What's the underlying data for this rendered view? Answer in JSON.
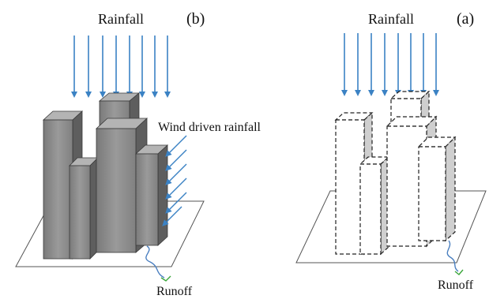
{
  "panel_b": {
    "letter": "(b)",
    "rainfall_label": "Rainfall",
    "wind_label": "Wind driven rainfall",
    "runoff_label": "Runoff"
  },
  "panel_a": {
    "letter": "(a)",
    "rainfall_label": "Rainfall",
    "runoff_label": "Runoff"
  },
  "colors": {
    "rain": "#3b82c4",
    "building_front": "#8c8c8c",
    "building_side": "#5e5e5e",
    "building_top": "#b4b4b4",
    "runoff_water": "#4a7fc0",
    "runoff_grass": "#3aa63a",
    "dashed_outline": "#222222",
    "shaded_side": "#cfcfcf"
  }
}
